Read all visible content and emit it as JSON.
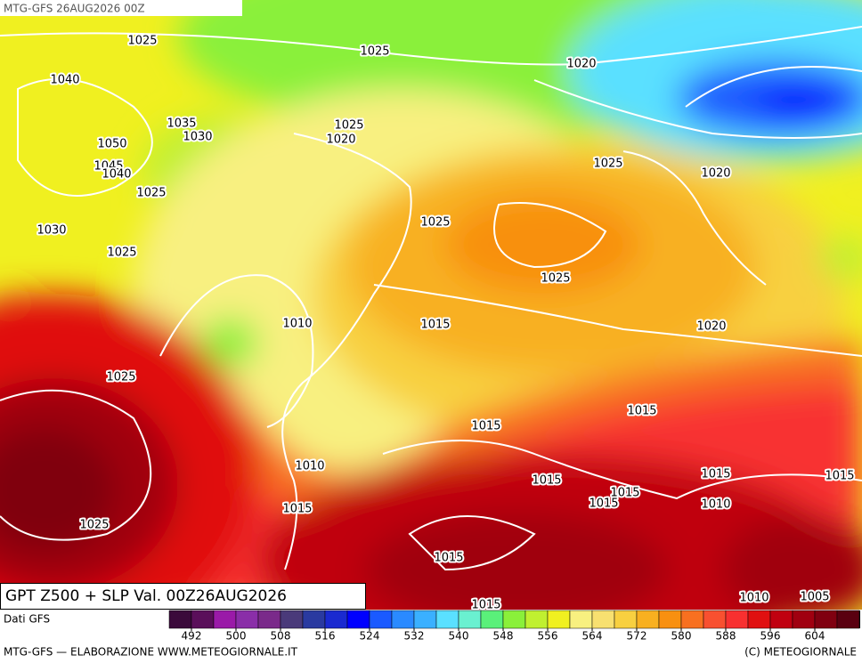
{
  "header_label": "MTG-GFS 26AUG2026 00Z",
  "title_label": "GPT Z500 + SLP Val. 00Z26AUG2026",
  "isobar_labels": [
    "1025",
    "1025",
    "1020",
    "1040",
    "1035",
    "1025",
    "1030",
    "1020",
    "1050",
    "1045",
    "1040",
    "1025",
    "1020",
    "1025",
    "1025",
    "1030",
    "1025",
    "1025",
    "1010",
    "1015",
    "1020",
    "1025",
    "1015",
    "1015",
    "1010",
    "1015",
    "1015",
    "1015",
    "1015",
    "1015",
    "1010",
    "1015",
    "1025",
    "1015",
    "1015",
    "1010",
    "1005"
  ],
  "legend": {
    "label": "Dati GFS",
    "ticks": [
      492,
      500,
      508,
      516,
      524,
      532,
      540,
      548,
      556,
      564,
      572,
      580,
      588,
      596,
      604
    ],
    "colors": [
      "#3b0a3b",
      "#5a0f5a",
      "#9a1aa8",
      "#8a2ea8",
      "#7a2a8a",
      "#4a3a7a",
      "#2a3aa0",
      "#1a2ad0",
      "#0000ff",
      "#1a5aff",
      "#2a8aff",
      "#3ab0ff",
      "#5ae0ff",
      "#6af0d0",
      "#5af07a",
      "#8af03a",
      "#c0f030",
      "#f0f020",
      "#f8f080",
      "#f8e070",
      "#f8d040",
      "#f8b020",
      "#f89010",
      "#f87020",
      "#f85030",
      "#f83030",
      "#e01010",
      "#c00010",
      "#a00010",
      "#800010",
      "#5a0010"
    ]
  },
  "footer": {
    "left": "MTG-GFS — ELABORAZIONE WWW.METEOGIORNALE.IT",
    "right": "(C) METEOGIORNALE"
  }
}
